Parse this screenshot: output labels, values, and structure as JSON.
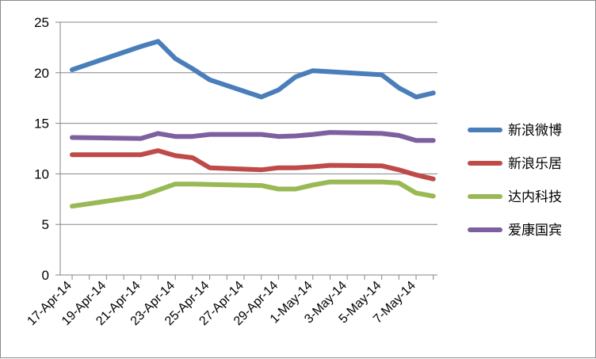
{
  "chart_data": {
    "type": "line",
    "title": "",
    "xlabel": "",
    "ylabel": "",
    "ylim": [
      0,
      25
    ],
    "yticks": [
      0,
      5,
      10,
      15,
      20,
      25
    ],
    "grid": "horizontal",
    "legend_position": "right",
    "x_tick_labels": [
      "17-Apr-14",
      "19-Apr-14",
      "21-Apr-14",
      "23-Apr-14",
      "25-Apr-14",
      "27-Apr-14",
      "29-Apr-14",
      "1-May-14",
      "3-May-14",
      "5-May-14",
      "7-May-14"
    ],
    "x": [
      "17-Apr-14",
      "21-Apr-14",
      "22-Apr-14",
      "23-Apr-14",
      "24-Apr-14",
      "25-Apr-14",
      "28-Apr-14",
      "29-Apr-14",
      "30-Apr-14",
      "1-May-14",
      "2-May-14",
      "5-May-14",
      "6-May-14",
      "7-May-14",
      "8-May-14"
    ],
    "series": [
      {
        "name": "新浪微博",
        "color": "#4a7ebb",
        "values": [
          20.3,
          22.6,
          23.1,
          21.4,
          20.4,
          19.3,
          17.6,
          18.3,
          19.6,
          20.2,
          20.1,
          19.8,
          18.5,
          17.6,
          18.0
        ]
      },
      {
        "name": "新浪乐居",
        "color": "#be4b48",
        "values": [
          11.9,
          11.9,
          12.3,
          11.8,
          11.6,
          10.6,
          10.4,
          10.6,
          10.6,
          10.7,
          10.85,
          10.8,
          10.4,
          9.9,
          9.5
        ]
      },
      {
        "name": "达内科技",
        "color": "#98b954",
        "values": [
          6.8,
          7.8,
          8.4,
          9.0,
          9.0,
          8.95,
          8.85,
          8.5,
          8.5,
          8.9,
          9.2,
          9.2,
          9.1,
          8.1,
          7.8
        ]
      },
      {
        "name": "爱康国宾",
        "color": "#7d60a0",
        "values": [
          13.6,
          13.5,
          14.0,
          13.7,
          13.7,
          13.9,
          13.9,
          13.7,
          13.75,
          13.9,
          14.1,
          14.0,
          13.8,
          13.3,
          13.3
        ]
      }
    ]
  }
}
